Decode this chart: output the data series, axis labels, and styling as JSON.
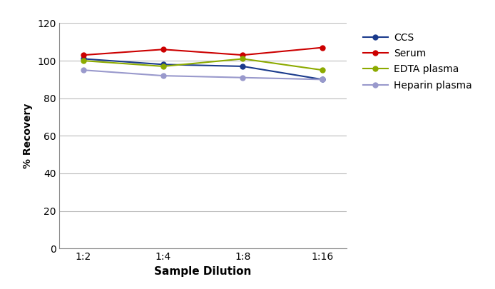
{
  "x_labels": [
    "1:2",
    "1:4",
    "1:8",
    "1:16"
  ],
  "x_positions": [
    0,
    1,
    2,
    3
  ],
  "series": [
    {
      "name": "CCS",
      "color": "#1a3a8c",
      "values": [
        101,
        98,
        97,
        90
      ]
    },
    {
      "name": "Serum",
      "color": "#cc0000",
      "values": [
        103,
        106,
        103,
        107
      ]
    },
    {
      "name": "EDTA plasma",
      "color": "#8caa00",
      "values": [
        100,
        97,
        101,
        95
      ]
    },
    {
      "name": "Heparin plasma",
      "color": "#9999cc",
      "values": [
        95,
        92,
        91,
        90
      ]
    }
  ],
  "xlabel": "Sample Dilution",
  "ylabel": "% Recovery",
  "ylim": [
    0,
    120
  ],
  "yticks": [
    0,
    20,
    40,
    60,
    80,
    100,
    120
  ],
  "background_color": "#ffffff",
  "grid_color": "#bbbbbb",
  "marker_size": 5,
  "linewidth": 1.5,
  "spine_color": "#888888",
  "xlabel_fontsize": 11,
  "ylabel_fontsize": 10,
  "tick_fontsize": 10,
  "legend_fontsize": 10
}
